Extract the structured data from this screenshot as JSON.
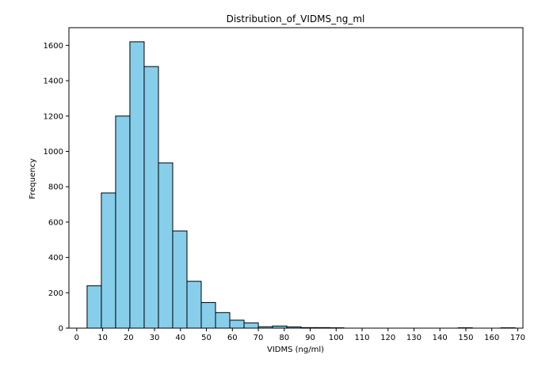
{
  "chart_data": {
    "type": "bar",
    "title": "Distribution_of_VIDMS_ng_ml",
    "xlabel": "VIDMS (ng/ml)",
    "ylabel": "Frequency",
    "xlim": [
      -3,
      172
    ],
    "ylim": [
      0,
      1700
    ],
    "x_ticks": [
      0,
      10,
      20,
      30,
      40,
      50,
      60,
      70,
      80,
      90,
      100,
      110,
      120,
      130,
      140,
      150,
      160,
      170
    ],
    "y_ticks": [
      0,
      200,
      400,
      600,
      800,
      1000,
      1200,
      1400,
      1600
    ],
    "bar_color": "#87ceeb",
    "edge_color": "#000000",
    "grid": false,
    "bins": [
      {
        "x0": 4.0,
        "x1": 9.5,
        "value": 240
      },
      {
        "x0": 9.5,
        "x1": 15.0,
        "value": 765
      },
      {
        "x0": 15.0,
        "x1": 20.5,
        "value": 1200
      },
      {
        "x0": 20.5,
        "x1": 26.0,
        "value": 1620
      },
      {
        "x0": 26.0,
        "x1": 31.5,
        "value": 1480
      },
      {
        "x0": 31.5,
        "x1": 37.0,
        "value": 935
      },
      {
        "x0": 37.0,
        "x1": 42.5,
        "value": 550
      },
      {
        "x0": 42.5,
        "x1": 48.0,
        "value": 265
      },
      {
        "x0": 48.0,
        "x1": 53.5,
        "value": 145
      },
      {
        "x0": 53.5,
        "x1": 59.0,
        "value": 88
      },
      {
        "x0": 59.0,
        "x1": 64.5,
        "value": 45
      },
      {
        "x0": 64.5,
        "x1": 70.0,
        "value": 30
      },
      {
        "x0": 70.0,
        "x1": 75.5,
        "value": 8
      },
      {
        "x0": 75.5,
        "x1": 81.0,
        "value": 12
      },
      {
        "x0": 81.0,
        "x1": 86.5,
        "value": 7
      },
      {
        "x0": 86.5,
        "x1": 92.0,
        "value": 3
      },
      {
        "x0": 92.0,
        "x1": 97.5,
        "value": 3
      },
      {
        "x0": 97.5,
        "x1": 103.0,
        "value": 2
      },
      {
        "x0": 103.0,
        "x1": 108.5,
        "value": 0
      },
      {
        "x0": 108.5,
        "x1": 114.0,
        "value": 0
      },
      {
        "x0": 114.0,
        "x1": 119.5,
        "value": 0
      },
      {
        "x0": 119.5,
        "x1": 125.0,
        "value": 0
      },
      {
        "x0": 125.0,
        "x1": 130.5,
        "value": 0
      },
      {
        "x0": 130.5,
        "x1": 136.0,
        "value": 0
      },
      {
        "x0": 136.0,
        "x1": 141.5,
        "value": 0
      },
      {
        "x0": 141.5,
        "x1": 147.0,
        "value": 0
      },
      {
        "x0": 147.0,
        "x1": 152.5,
        "value": 2
      },
      {
        "x0": 152.5,
        "x1": 158.0,
        "value": 0
      },
      {
        "x0": 158.0,
        "x1": 163.5,
        "value": 0
      },
      {
        "x0": 163.5,
        "x1": 169.0,
        "value": 2
      }
    ]
  }
}
